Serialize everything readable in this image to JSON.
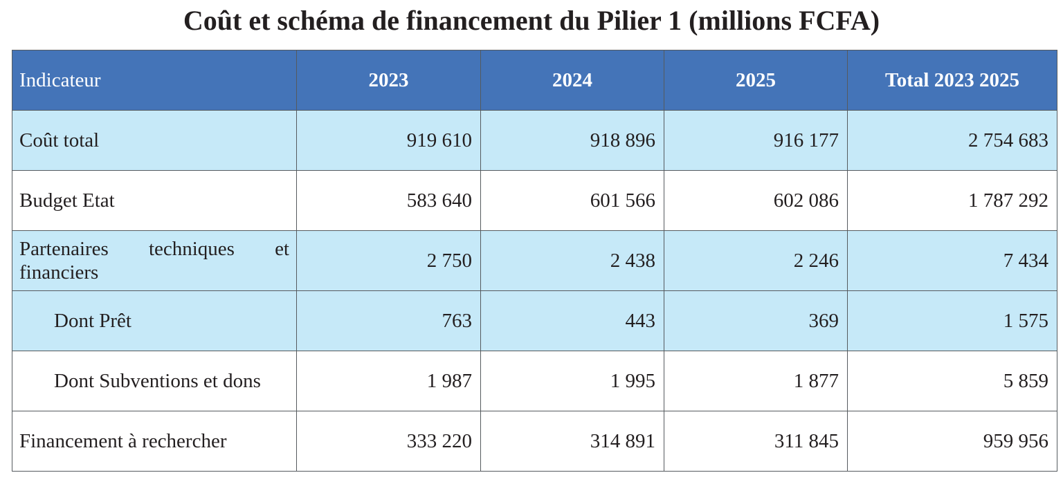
{
  "title": "Coût et schéma de financement du Pilier 1 (millions FCFA)",
  "table": {
    "headers": [
      "Indicateur",
      "2023",
      "2024",
      "2025",
      "Total 2023 2025"
    ],
    "rows": [
      {
        "label": "Coût total",
        "values": [
          "919 610",
          "918 896",
          "916 177",
          "2 754 683"
        ]
      },
      {
        "label": "Budget Etat",
        "values": [
          "583 640",
          "601 566",
          "602 086",
          "1 787 292"
        ]
      },
      {
        "label": "Partenaires techniques et financiers",
        "values": [
          "2 750",
          "2 438",
          "2 246",
          "7 434"
        ]
      },
      {
        "label": "Dont Prêt",
        "values": [
          "763",
          "443",
          "369",
          "1 575"
        ]
      },
      {
        "label": "Dont Subventions et dons",
        "values": [
          "1 987",
          "1 995",
          "1 877",
          "5 859"
        ]
      },
      {
        "label": "Financement à rechercher",
        "values": [
          "333 220",
          "314 891",
          "311 845",
          "959 956"
        ]
      }
    ]
  },
  "colors": {
    "header_bg": "#4474b8",
    "header_text": "#ffffff",
    "row_shade": "#c6e9f8",
    "row_plain": "#ffffff",
    "border": "#555a5e",
    "text": "#231f20"
  }
}
